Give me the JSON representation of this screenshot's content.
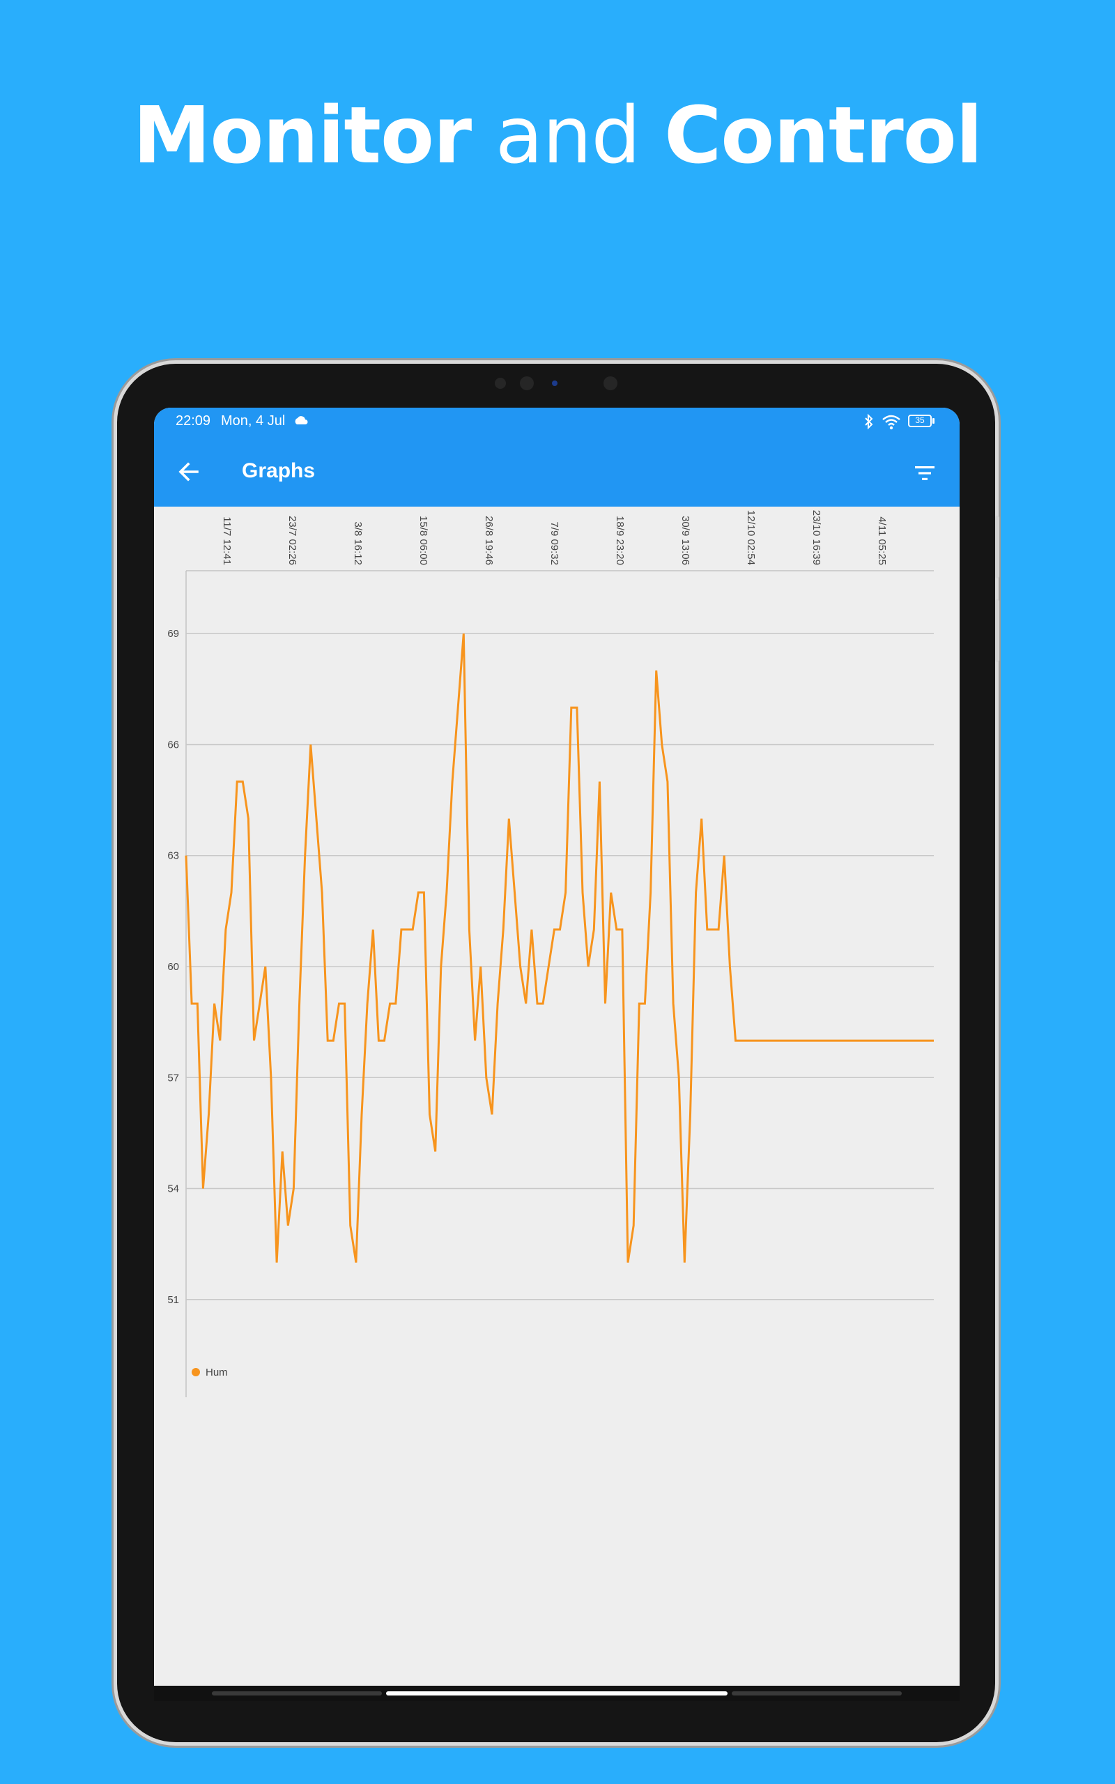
{
  "promo": {
    "headline_part1": "Monitor",
    "headline_part2": "and",
    "headline_part3": "Control"
  },
  "status_bar": {
    "time": "22:09",
    "date": "Mon, 4 Jul",
    "battery": "35",
    "icons": [
      "cloud-icon",
      "bluetooth-icon",
      "wifi-icon",
      "battery-icon"
    ]
  },
  "app_bar": {
    "title": "Graphs",
    "back_icon": "arrow-left-icon",
    "filter_icon": "filter-icon",
    "background": "#2196f3"
  },
  "chart_data": {
    "type": "line",
    "title": "",
    "xlabel": "",
    "ylabel": "",
    "x_tick_labels": [
      "11/7 12:41",
      "23/7 02:26",
      "3/8 16:12",
      "15/8 06:00",
      "26/8 19:46",
      "7/9 09:32",
      "18/9 23:20",
      "30/9 13:06",
      "12/10 02:54",
      "23/10 16:39",
      "4/11 05:25"
    ],
    "y_ticks": [
      51,
      54,
      57,
      60,
      63,
      66,
      69
    ],
    "ylim": [
      49.3,
      70.7
    ],
    "grid": true,
    "legend_position": "bottom-left",
    "series": [
      {
        "name": "Hum",
        "color": "#f7941d",
        "values": [
          63,
          59,
          59,
          54,
          56,
          59,
          58,
          61,
          62,
          65,
          65,
          64,
          58,
          59,
          60,
          57,
          52,
          55,
          53,
          54,
          59,
          63,
          66,
          64,
          62,
          58,
          58,
          59,
          59,
          53,
          52,
          56,
          59,
          61,
          58,
          58,
          59,
          59,
          61,
          61,
          61,
          62,
          62,
          56,
          55,
          60,
          62,
          65,
          67,
          69,
          61,
          58,
          60,
          57,
          56,
          59,
          61,
          64,
          62,
          60,
          59,
          61,
          59,
          59,
          60,
          61,
          61,
          62,
          67,
          67,
          62,
          60,
          61,
          65,
          59,
          62,
          61,
          61,
          52,
          53,
          59,
          59,
          62,
          68,
          66,
          65,
          59,
          57,
          52,
          56,
          62,
          64,
          61,
          61,
          61,
          63,
          60,
          58,
          58,
          58,
          58,
          58,
          58,
          58,
          58,
          58,
          58,
          58,
          58,
          58,
          58,
          58,
          58,
          58,
          58,
          58,
          58,
          58,
          58,
          58,
          58,
          58,
          58,
          58,
          58,
          58,
          58,
          58,
          58,
          58,
          58,
          58,
          58
        ]
      }
    ]
  }
}
